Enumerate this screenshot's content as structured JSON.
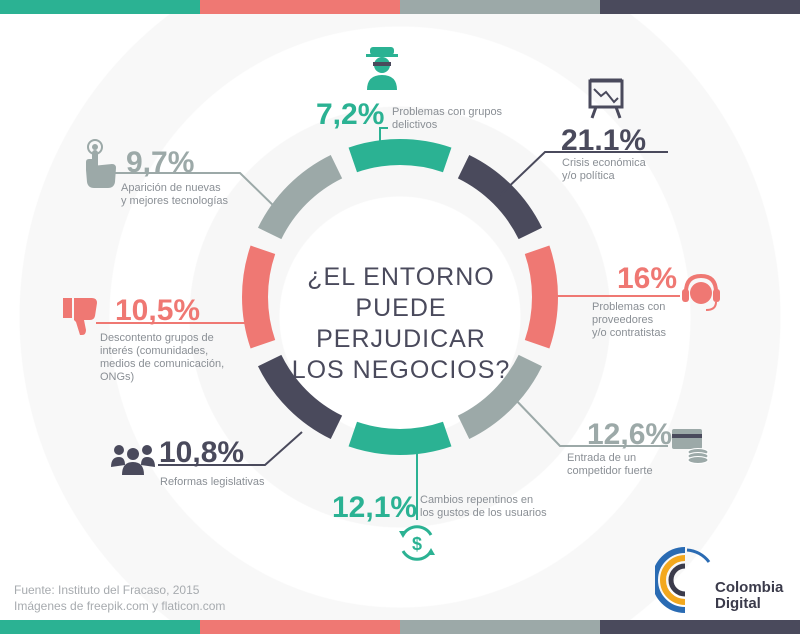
{
  "colors": {
    "teal": "#2bb293",
    "dark": "#4a4a5c",
    "coral": "#ef7873",
    "gray": "#9ca9a8"
  },
  "top_bars": [
    "#2bb293",
    "#ef7873",
    "#9ca9a8",
    "#4a4a5c"
  ],
  "center": {
    "line1": "¿EL ENTORNO",
    "line2": "PUEDE PERJUDICAR",
    "line3": "LOS NEGOCIOS?"
  },
  "chart_data": {
    "type": "donut",
    "title": "¿EL ENTORNO PUEDE PERJUDICAR LOS NEGOCIOS?",
    "categories": [
      "Problemas con grupos delictivos",
      "Crisis económica y/o política",
      "Problemas con proveedores y/o contratistas",
      "Entrada de un competidor fuerte",
      "Cambios repentinos en los gustos de los usuarios",
      "Reformas legislativas",
      "Descontento grupos de interés (comunidades, medios de comunicación, ONGs)",
      "Aparición de nuevas y mejores tecnologías"
    ],
    "values": [
      7.2,
      21.1,
      16,
      12.6,
      12.1,
      10.8,
      10.5,
      9.7
    ],
    "labels": [
      "7,2%",
      "21.1%",
      "16%",
      "12,6%",
      "12,1%",
      "10,8%",
      "10,5%",
      "9,7%"
    ],
    "colors": [
      "#2bb293",
      "#4a4a5c",
      "#ef7873",
      "#9ca9a8",
      "#2bb293",
      "#4a4a5c",
      "#ef7873",
      "#9ca9a8"
    ]
  },
  "items": [
    {
      "pct": "7,2%",
      "line1": "Problemas con grupos",
      "line2": "delictivos",
      "icon": "criminal-icon"
    },
    {
      "pct": "21.1%",
      "line1": "Crisis económica",
      "line2": "y/o política",
      "icon": "presentation-chart-icon"
    },
    {
      "pct": "16%",
      "line1": "Problemas con",
      "line2": "proveedores",
      "line3": "y/o contratistas",
      "icon": "headset-icon"
    },
    {
      "pct": "12,6%",
      "line1": "Entrada de un",
      "line2": "competidor fuerte",
      "icon": "money-card-icon"
    },
    {
      "pct": "12,1%",
      "line1": "Cambios repentinos en",
      "line2": "los gustos de los usuarios",
      "icon": "dollar-cycle-icon"
    },
    {
      "pct": "10,8%",
      "line1": "Reformas legislativas",
      "icon": "people-group-icon"
    },
    {
      "pct": "10,5%",
      "line1": "Descontento grupos de",
      "line2": "interés (comunidades,",
      "line3": "medios de comunicación,",
      "line4": "ONGs)",
      "icon": "thumbs-down-icon"
    },
    {
      "pct": "9,7%",
      "line1": "Aparición de nuevas",
      "line2": "y mejores tecnologías",
      "icon": "touch-hand-icon"
    }
  ],
  "footer": {
    "line1": "Fuente: Instituto del Fracaso, 2015",
    "line2": "Imágenes de freepik.com y flaticon.com"
  },
  "logo": {
    "line1": "Colombia",
    "line2": "Digital"
  }
}
